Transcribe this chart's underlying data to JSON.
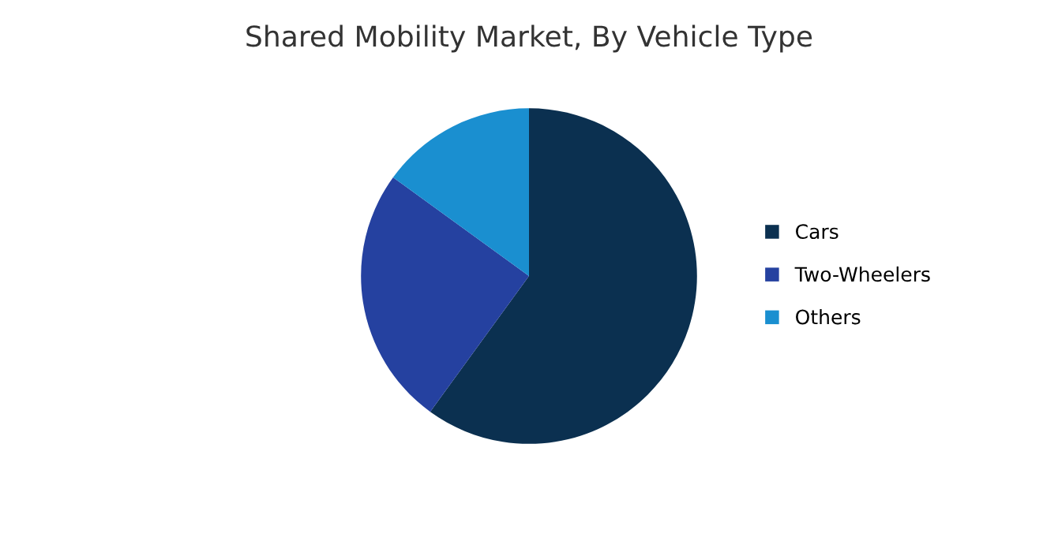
{
  "chart_data": {
    "type": "pie",
    "title": "Shared Mobility Market, By Vehicle Type",
    "categories": [
      "Cars",
      "Two-Wheelers",
      "Others"
    ],
    "values": [
      60,
      25,
      15
    ],
    "colors": [
      "#0b3050",
      "#2541a0",
      "#1a8fd0"
    ],
    "legend": "right"
  }
}
